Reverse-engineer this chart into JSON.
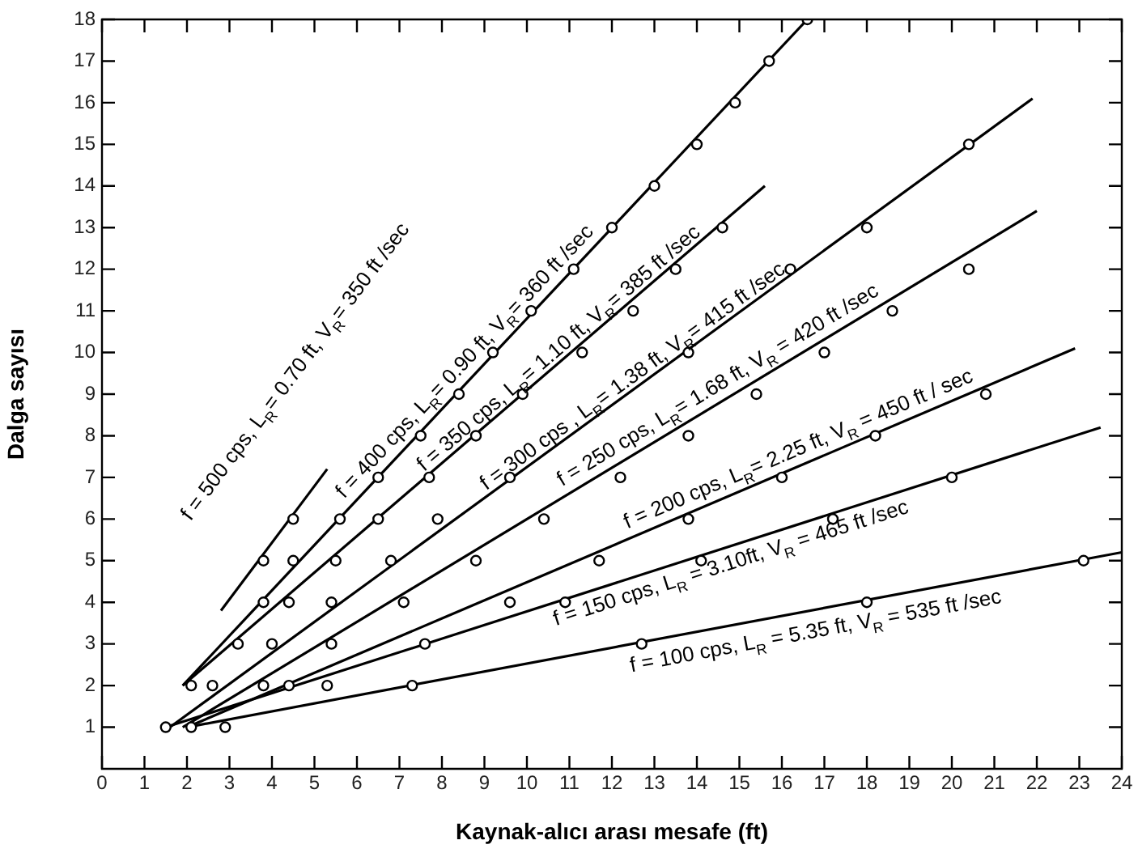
{
  "chart_data": {
    "type": "line",
    "xlabel": "Kaynak-alıcı arası mesafe (ft)",
    "ylabel": "Dalga sayısı",
    "xlim": [
      0,
      24
    ],
    "xticks": [
      0,
      1,
      2,
      3,
      4,
      5,
      6,
      7,
      8,
      9,
      10,
      11,
      12,
      13,
      14,
      15,
      16,
      17,
      18,
      19,
      20,
      21,
      22,
      23,
      24
    ],
    "ylim": [
      0,
      18
    ],
    "yticks": [
      1,
      2,
      3,
      4,
      5,
      6,
      7,
      8,
      9,
      10,
      11,
      12,
      13,
      14,
      15,
      16,
      17,
      18
    ],
    "grid": false,
    "legend": false,
    "marker": "circle",
    "series": [
      {
        "type": "scatter",
        "name": "f = 500 cps, L$_{R}$= 0.70 ft, V$_{R}$= 350 ft /sec",
        "color": "#000000",
        "x": [
          3.8,
          4.5
        ],
        "values": [
          5,
          6
        ]
      },
      {
        "marker": "none",
        "color": "#000000",
        "x": [
          2.8,
          5.3
        ],
        "values": [
          3.8,
          7.2
        ]
      },
      {
        "type": "scatter",
        "name": "f = 400 cps, L$_{R}$= 0.90 ft, V$_{R}$= 360 ft /sec",
        "color": "#000000",
        "x": [
          3.8,
          4.5,
          5.6,
          6.5,
          7.5,
          8.4,
          9.2,
          10.1,
          11.1,
          12.0,
          13.0,
          14.0,
          14.9,
          15.7,
          16.6
        ],
        "values": [
          4,
          5,
          6,
          7,
          8,
          9,
          10,
          11,
          12,
          13,
          14,
          15,
          16,
          17,
          18
        ]
      },
      {
        "marker": "none",
        "color": "#000000",
        "x": [
          1.9,
          16.6
        ],
        "values": [
          2,
          18
        ]
      },
      {
        "type": "scatter",
        "name": "f = 350 cps, L$_{R}$= 1.10 ft, V$_{R}$= 385 ft /sec",
        "color": "#000000",
        "x": [
          2.1,
          3.2,
          4.4,
          5.5,
          6.5,
          7.7,
          8.8,
          9.9,
          11.3,
          12.5,
          13.5,
          14.6
        ],
        "values": [
          2,
          3,
          4,
          5,
          6,
          7,
          8,
          9,
          10,
          11,
          12,
          13
        ]
      },
      {
        "marker": "none",
        "color": "#000000",
        "x": [
          1.9,
          15.6
        ],
        "values": [
          2,
          14
        ]
      },
      {
        "type": "scatter",
        "name": "f = 300 cps , L$_{R}$= 1.38 ft, V$_{R}$= 415 ft /sec",
        "color": "#000000",
        "x": [
          2.6,
          4.0,
          5.4,
          6.8,
          7.9,
          9.6,
          13.8,
          16.2,
          18.0,
          20.4
        ],
        "values": [
          2,
          3,
          4,
          5,
          6,
          7,
          10,
          12,
          13,
          15
        ]
      },
      {
        "marker": "none",
        "color": "#000000",
        "x": [
          1.6,
          21.9
        ],
        "values": [
          1,
          16.1
        ]
      },
      {
        "type": "scatter",
        "name": "f = 250 cps, L$_{R}$= 1.68 ft, V$_{R}$ = 420 ft /sec",
        "color": "#000000",
        "x": [
          2.1,
          3.8,
          5.4,
          7.1,
          8.8,
          10.4,
          12.2,
          13.8,
          15.4,
          17.0,
          18.6,
          20.4
        ],
        "values": [
          1,
          2,
          3,
          4,
          5,
          6,
          7,
          8,
          9,
          10,
          11,
          12
        ]
      },
      {
        "marker": "none",
        "color": "#000000",
        "x": [
          1.9,
          22.0
        ],
        "values": [
          1,
          13.4
        ]
      },
      {
        "type": "scatter",
        "name": "f = 200 cps, L$_{R}$= 2.25 ft, V$_{R}$ = 450 ft / sec",
        "color": "#000000",
        "x": [
          2.9,
          5.3,
          7.6,
          9.6,
          11.7,
          13.8,
          16.0,
          18.2,
          20.8
        ],
        "values": [
          1,
          2,
          3,
          4,
          5,
          6,
          7,
          8,
          9
        ]
      },
      {
        "marker": "none",
        "color": "#000000",
        "x": [
          2.0,
          22.9
        ],
        "values": [
          1,
          10.1
        ]
      },
      {
        "type": "scatter",
        "name": "f = 150 cps, L$_{R}$ = 3.10ft, V$_{R}$ = 465 ft /sec",
        "color": "#000000",
        "x": [
          1.5,
          4.4,
          7.6,
          10.9,
          14.1,
          17.2,
          20.0
        ],
        "values": [
          1,
          2,
          null,
          4,
          5,
          6,
          7
        ]
      },
      {
        "marker": "none",
        "color": "#000000",
        "x": [
          1.5,
          23.5
        ],
        "values": [
          1,
          8.2
        ]
      },
      {
        "type": "scatter",
        "name": "f = 100 cps, L$_{R}$ = 5.35 ft, V$_{R}$ = 535 ft /sec",
        "color": "#000000",
        "x": [
          7.3,
          12.7,
          18.0,
          23.1
        ],
        "values": [
          2,
          3,
          4,
          5
        ]
      },
      {
        "marker": "none",
        "color": "#000000",
        "x": [
          2.0,
          24.0
        ],
        "values": [
          1,
          5.2
        ]
      }
    ]
  }
}
